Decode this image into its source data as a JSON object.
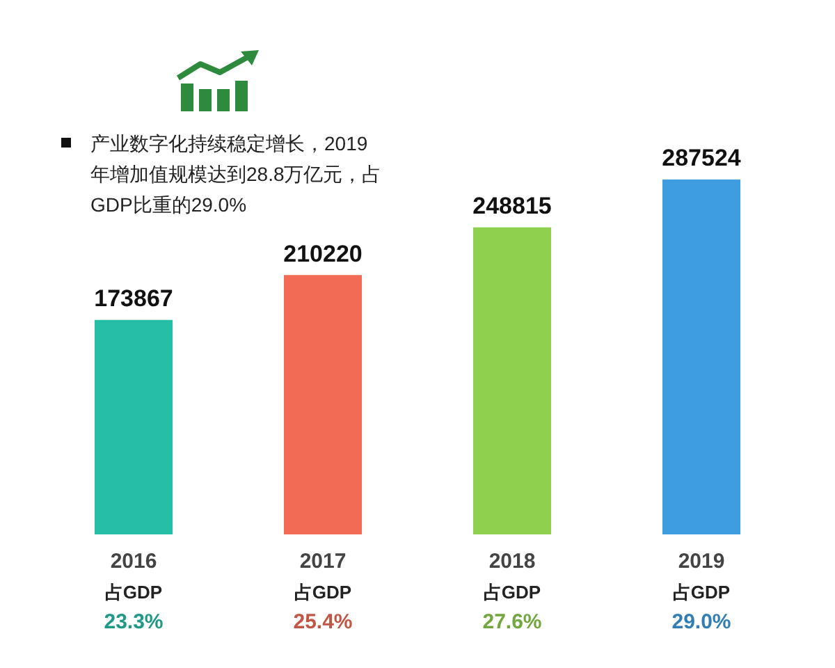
{
  "chart_data": {
    "type": "bar",
    "categories": [
      "2016",
      "2017",
      "2018",
      "2019"
    ],
    "values": [
      173867,
      210220,
      248815,
      287524
    ],
    "colors": [
      "#26bfa6",
      "#f26b55",
      "#8fd14f",
      "#3d9de0"
    ],
    "data_labels": true,
    "tick_labels": "x",
    "annotations": [
      "产业数字化持续稳定增长，2019年增加值规模达到28.8万亿元，占GDP比重的29.0%",
      "占GDP",
      "23.3%",
      "占GDP",
      "25.4%",
      "占GDP",
      "27.6%",
      "占GDP",
      "29.0%"
    ]
  }
}
